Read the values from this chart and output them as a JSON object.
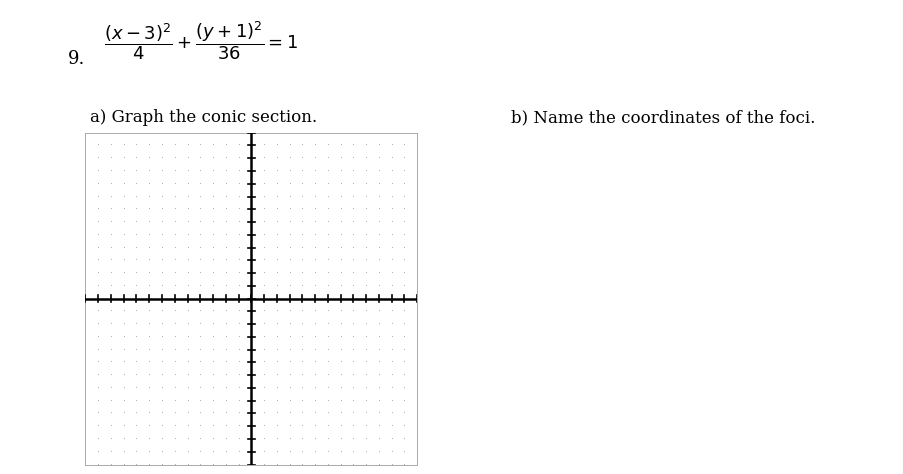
{
  "number": "9.",
  "label_a": "a) Graph the conic section.",
  "label_b": "b) Name the coordinates of the foci.",
  "graph_bg": "#ffffff",
  "axis_color": "#000000",
  "dot_color": "#b0b0b0",
  "border_color": "#aaaaaa",
  "grid_xlim": [
    -13,
    13
  ],
  "grid_ylim": [
    -13,
    13
  ],
  "grid_step": 1,
  "figure_bg": "#ffffff",
  "text_color": "#000000",
  "eq_fontsize": 13,
  "label_fontsize": 12,
  "num_fontsize": 13
}
